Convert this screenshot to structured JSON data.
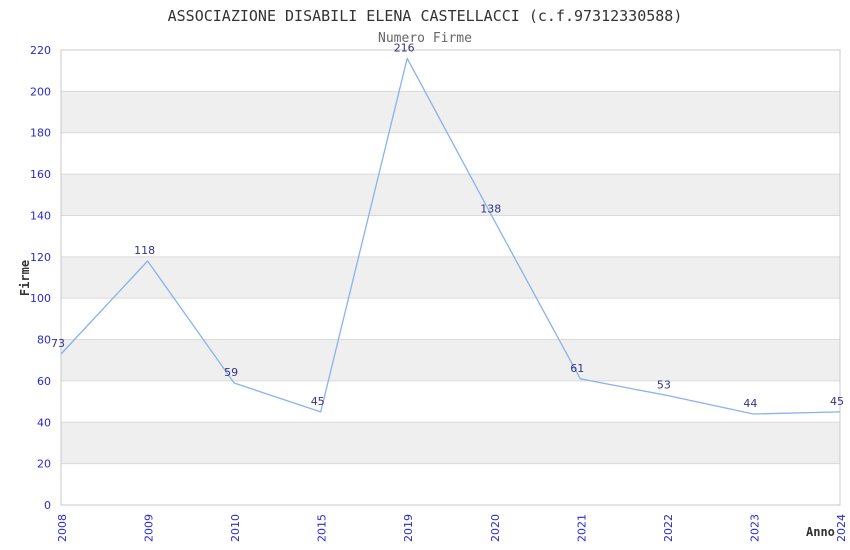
{
  "header": {
    "title": "ASSOCIAZIONE DISABILI ELENA CASTELLACCI (c.f.97312330588)",
    "subtitle": "Numero Firme"
  },
  "chart_data": {
    "type": "line",
    "title": "ASSOCIAZIONE DISABILI ELENA CASTELLACCI (c.f.97312330588)",
    "subtitle": "Numero Firme",
    "xlabel": "Anno",
    "ylabel": "Firme",
    "categories": [
      "2008",
      "2009",
      "2010",
      "2015",
      "2019",
      "2020",
      "2021",
      "2022",
      "2023",
      "2024"
    ],
    "values": [
      73,
      118,
      59,
      45,
      216,
      138,
      61,
      53,
      44,
      45
    ],
    "ylim": [
      0,
      220
    ],
    "ytick_step": 20,
    "grid": "horizontal-bands-alternating",
    "legend": "none",
    "colors": {
      "line": "#89b3e9",
      "tick_label": "#2929d4",
      "data_label": "#333388",
      "band": "#efefef",
      "gridline": "#dadada",
      "border": "#c8c8c8",
      "title": "#333333",
      "subtitle": "#666666",
      "axis_title": "#333333",
      "background": "#ffffff"
    }
  }
}
